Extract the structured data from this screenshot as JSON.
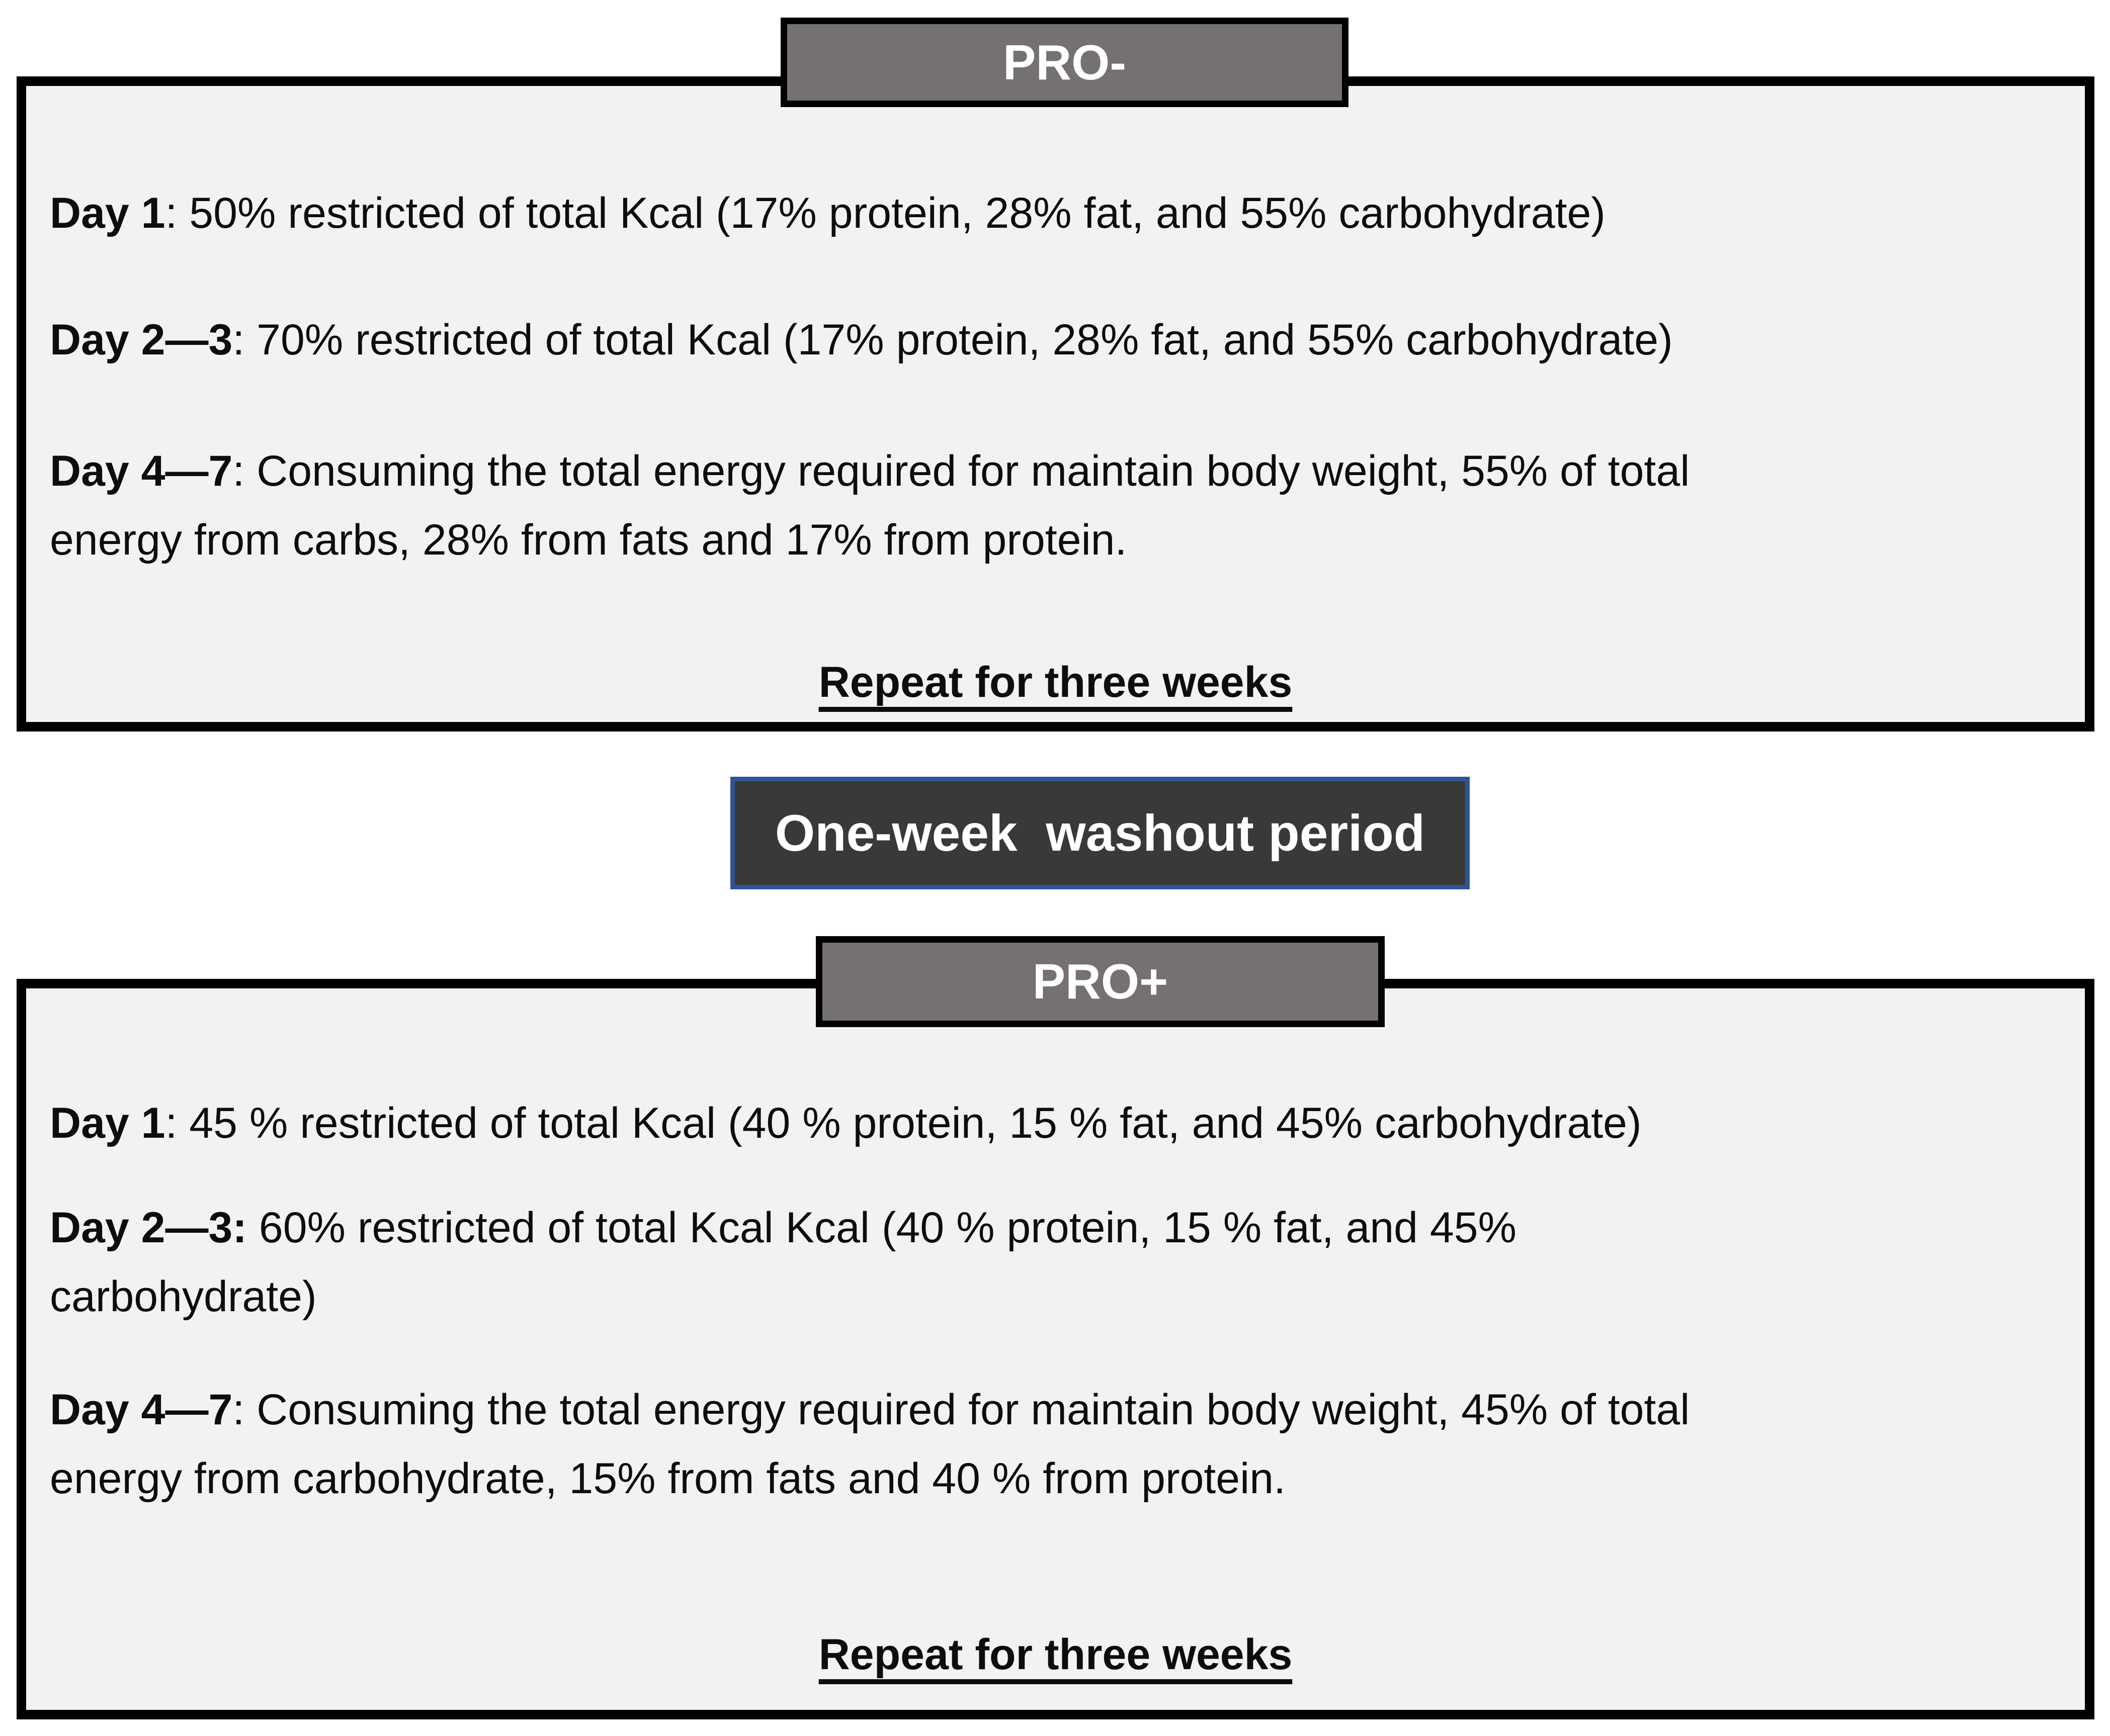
{
  "pro_minus": {
    "header": "PRO-",
    "items": [
      {
        "label": "Day 1",
        "rest": ": 50% restricted of total Kcal (17% protein, 28% fat, and 55% carbohydrate)"
      },
      {
        "label": "Day 2—3",
        "rest": ": 70% restricted of total Kcal (17% protein, 28% fat, and 55% carbohydrate)"
      },
      {
        "label": "Day 4—7",
        "rest": ": Consuming the total energy required for maintain body weight, 55% of total",
        "line2": "energy from carbs, 28% from fats and 17% from protein."
      }
    ],
    "repeat_note": "Repeat for three weeks"
  },
  "washout": {
    "label": "One-week  washout period"
  },
  "pro_plus": {
    "header": "PRO+",
    "items": [
      {
        "label": "Day 1",
        "rest": ": 45 % restricted of total Kcal (40 % protein, 15 % fat, and 45% carbohydrate)"
      },
      {
        "label": "Day 2—3:",
        "rest": " 60% restricted of total Kcal Kcal (40 % protein, 15 % fat, and 45%",
        "line2": "carbohydrate)"
      },
      {
        "label": "Day 4—7",
        "rest": ": Consuming the total energy required for maintain body weight, 45% of total",
        "line2": "energy from carbohydrate, 15% from fats and 40 % from protein."
      }
    ],
    "repeat_note": "Repeat for three weeks"
  },
  "colors": {
    "box_background": "#f2f2f2",
    "box_border": "#000000",
    "header_tab_background": "#767171",
    "washout_background": "#3b3838",
    "washout_border": "#2f5496",
    "text": "#0d0d0d"
  }
}
